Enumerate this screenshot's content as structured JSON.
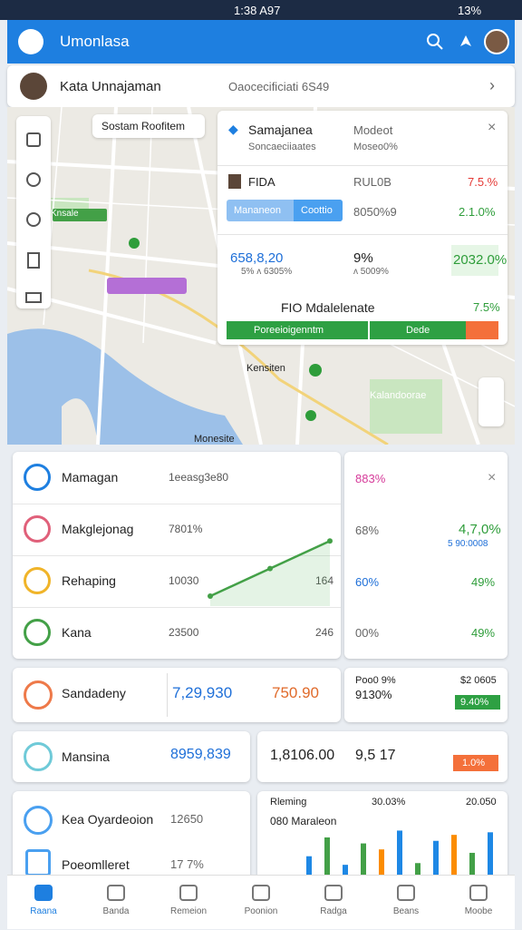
{
  "status": {
    "time": "1:38 A97",
    "battery": "13%"
  },
  "appbar": {
    "title": "Umonlasa"
  },
  "profile": {
    "name": "Kata Unnajaman",
    "detail": "Oaocecificiati 6S49"
  },
  "map": {
    "search": "Sostam Roofitem",
    "labels": [
      "Kensiten",
      "Monesite",
      "Kalandoorae",
      "Knsale"
    ]
  },
  "card": {
    "title": "Samajanea",
    "meta": "Modeot",
    "subtitle": "Soncaeciiaates",
    "submeta": "Moseo0%",
    "row1": [
      "FIDA",
      "RUL0B",
      "7.5.%"
    ],
    "buttons": [
      "Mananeon",
      "Coottio"
    ],
    "row2": [
      "8050%9",
      "2.1.0%"
    ],
    "stats": [
      "658,8,20",
      "9%",
      "2032.0%"
    ],
    "notes": [
      "5% ᴧ 6305%",
      "ᴧ 5009%"
    ],
    "footer": [
      "FIO Mdalelenate",
      "7.5%"
    ],
    "bar_labels": [
      "Poreeioigenntm",
      "Dede"
    ]
  },
  "list": [
    {
      "label": "Mamagan",
      "value": "1eeasg3e80"
    },
    {
      "label": "Makglejonag",
      "value": "7801%"
    },
    {
      "label": "Rehaping",
      "value": "10030",
      "extra": "164"
    },
    {
      "label": "Kana",
      "value": "23500",
      "extra": "246"
    }
  ],
  "line": {
    "values": [
      12,
      45,
      78
    ],
    "ylim": [
      0,
      100
    ]
  },
  "side": {
    "header": "883%",
    "rows": [
      [
        "68%",
        "4,7,0%"
      ],
      [
        "60%",
        "49%"
      ],
      [
        "00%",
        "49%"
      ]
    ],
    "note": "5 90:0008"
  },
  "tiles": {
    "sandadeny": {
      "label": "Sandadeny",
      "values": [
        "7,29,930",
        "750.90"
      ]
    },
    "right1": [
      "Poo0 9%",
      "$2 0605",
      "9130%",
      "9.40%"
    ],
    "mansina": {
      "label": "Mansina",
      "value": "8959,839"
    },
    "right2": [
      "1,8106.00",
      "9,5 17",
      "1.0%"
    ],
    "list2": [
      [
        "Kea Oyardeoion",
        "12650"
      ],
      [
        "Poeomlleret",
        "17 7%"
      ]
    ]
  },
  "bars": {
    "title": "Rleming",
    "stats": [
      "30.03%",
      "20.050"
    ],
    "subtitle": "080 Maraleon",
    "values": [
      30,
      52,
      20,
      45,
      38,
      60,
      22,
      48,
      55,
      34,
      58
    ],
    "colors": [
      "#1e88e5",
      "#43a047",
      "#1e88e5",
      "#43a047",
      "#fb8c00",
      "#1e88e5",
      "#43a047",
      "#1e88e5",
      "#fb8c00",
      "#43a047",
      "#1e88e5"
    ],
    "ylim": [
      0,
      70
    ]
  },
  "nav": [
    "Raana",
    "Banda",
    "Remeion",
    "Poonion",
    "Radga",
    "Beans",
    "Moobe"
  ]
}
